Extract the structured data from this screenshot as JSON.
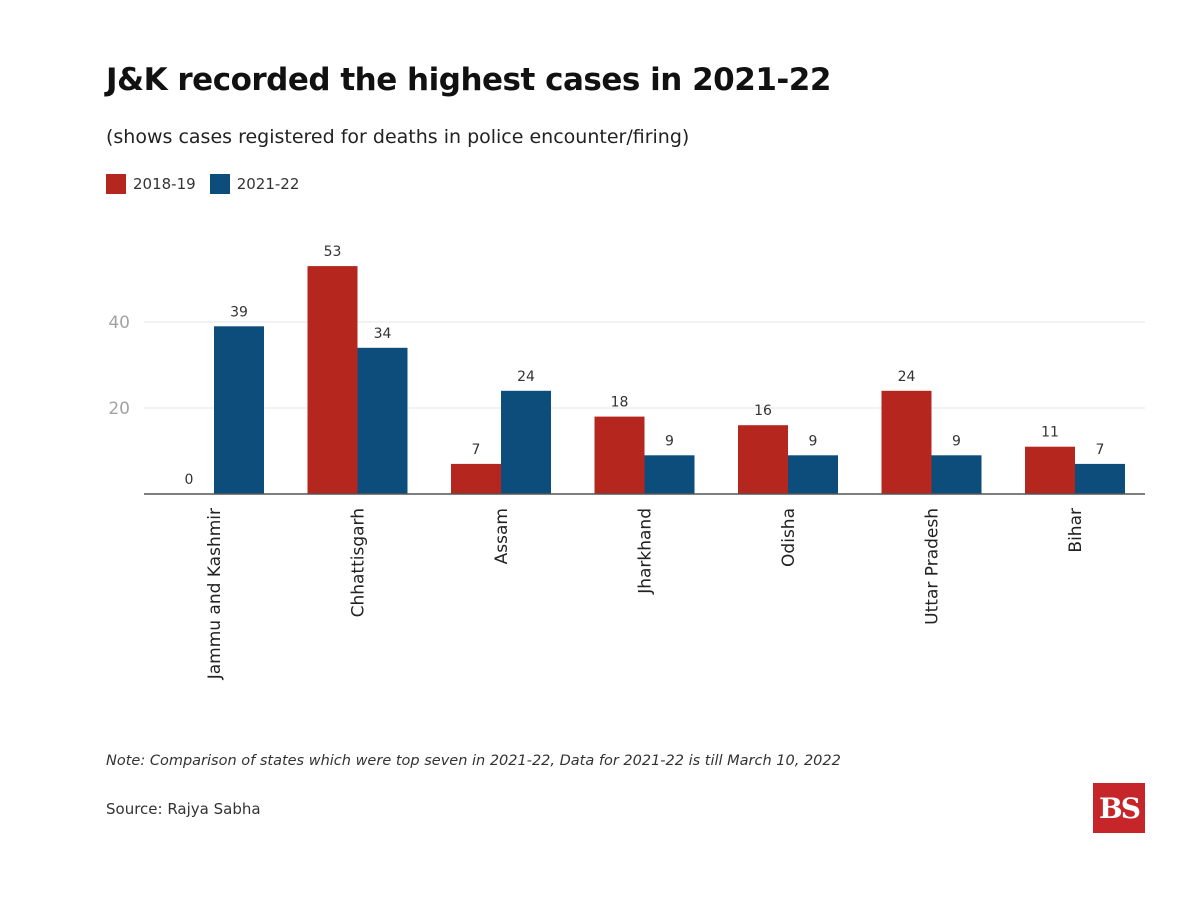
{
  "chart_data": {
    "type": "bar",
    "title": "J&K recorded the highest cases in 2021-22",
    "subtitle": "(shows cases registered for deaths in police encounter/firing)",
    "categories": [
      "Jammu and Kashmir",
      "Chhattisgarh",
      "Assam",
      "Jharkhand",
      "Odisha",
      "Uttar Pradesh",
      "Bihar"
    ],
    "series": [
      {
        "name": "2018-19",
        "color": "#b5261e",
        "values": [
          0,
          53,
          7,
          18,
          16,
          24,
          11
        ]
      },
      {
        "name": "2021-22",
        "color": "#0d4d7c",
        "values": [
          39,
          34,
          24,
          9,
          9,
          9,
          7
        ]
      }
    ],
    "yticks": [
      20,
      40
    ],
    "ylim": [
      0,
      60
    ],
    "grid": true,
    "legend": "top-left",
    "xlabel": "",
    "ylabel": ""
  },
  "note": "Note: Comparison of states which were top seven in 2021-22, Data for 2021-22 is till March 10, 2022",
  "source": "Source: Rajya Sabha",
  "logo_text": "BS"
}
